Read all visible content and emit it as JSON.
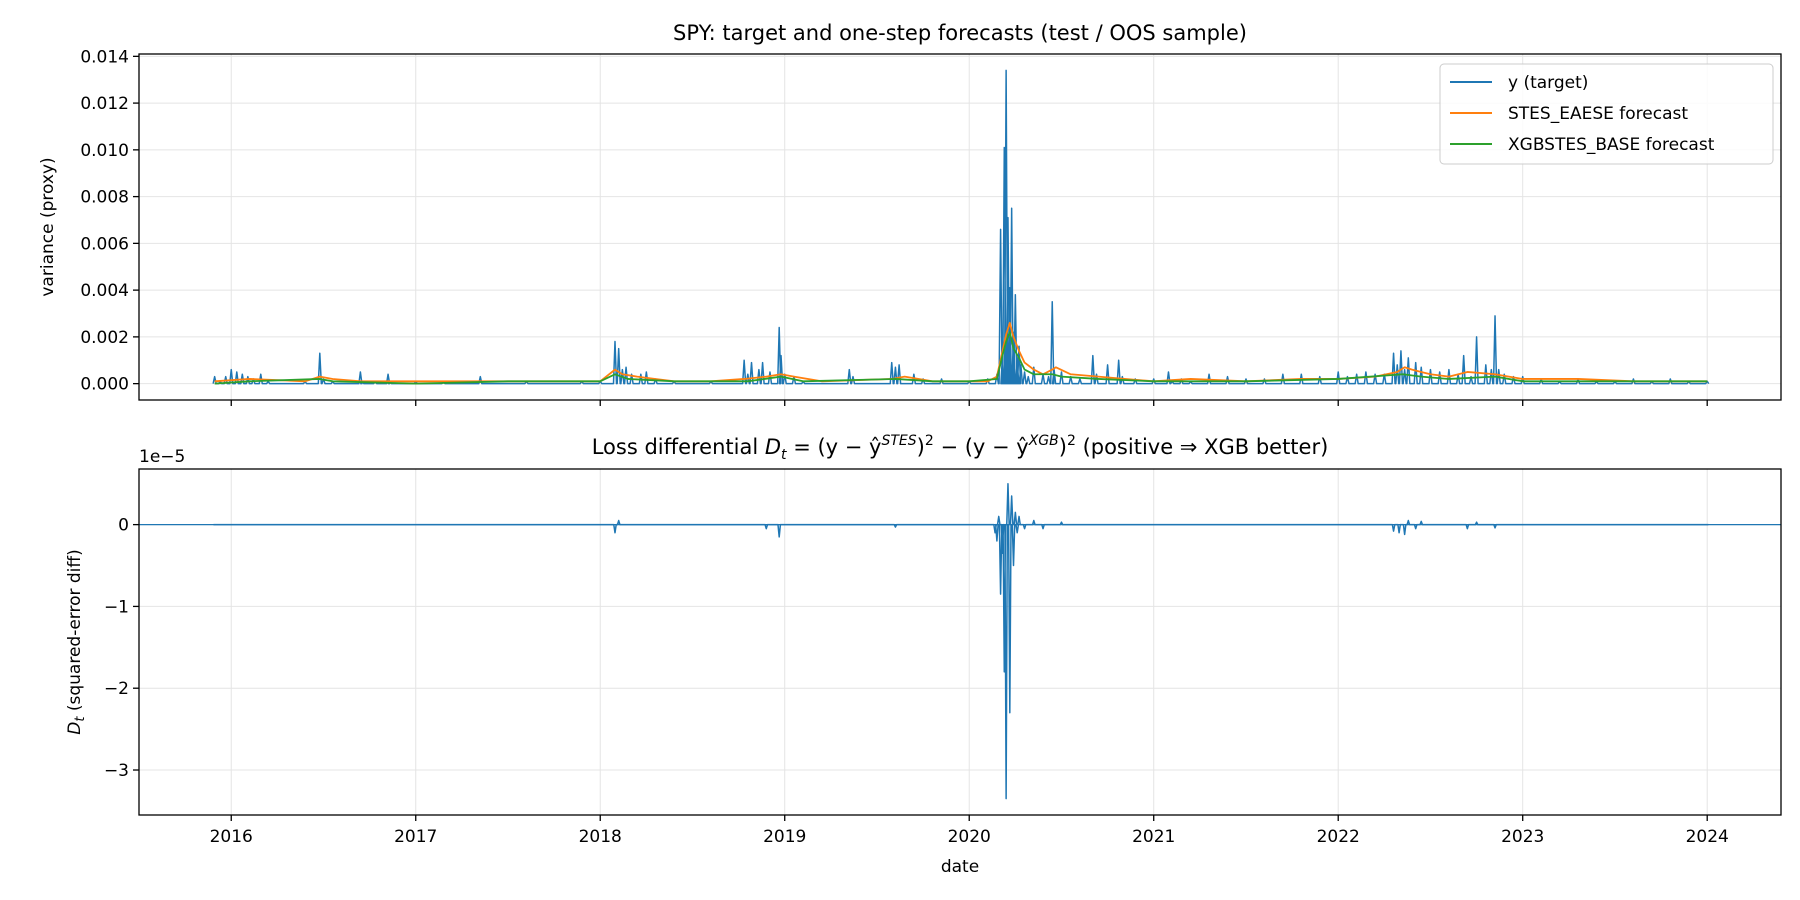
{
  "colors": {
    "target": "#1f77b4",
    "stes": "#ff7f0e",
    "xgb": "#2ca02c",
    "grid": "#e4e4e4",
    "axes": "#000000"
  },
  "chart_data": [
    {
      "type": "line",
      "title": "SPY: target and one-step forecasts (test / OOS sample)",
      "xlabel": "",
      "ylabel": "variance (proxy)",
      "xlim": [
        2015.5,
        2024.4
      ],
      "ylim": [
        -0.0007,
        0.0141
      ],
      "x_ticks": [
        2016,
        2017,
        2018,
        2019,
        2020,
        2021,
        2022,
        2023,
        2024
      ],
      "y_ticks": [
        0.0,
        0.002,
        0.004,
        0.006,
        0.008,
        0.01,
        0.012,
        0.014
      ],
      "y_tick_labels": [
        "0.000",
        "0.002",
        "0.004",
        "0.006",
        "0.008",
        "0.010",
        "0.012",
        "0.014"
      ],
      "grid": true,
      "legend_position": "top-right",
      "series": [
        {
          "name": "y (target)",
          "color": "#1f77b4",
          "x": [
            2015.91,
            2015.94,
            2015.97,
            2016.0,
            2016.03,
            2016.06,
            2016.09,
            2016.12,
            2016.16,
            2016.2,
            2016.3,
            2016.4,
            2016.48,
            2016.5,
            2016.55,
            2016.7,
            2016.71,
            2016.78,
            2016.85,
            2016.86,
            2017.0,
            2017.15,
            2017.35,
            2017.37,
            2017.6,
            2017.75,
            2017.9,
            2018.0,
            2018.08,
            2018.1,
            2018.12,
            2018.14,
            2018.17,
            2018.22,
            2018.25,
            2018.3,
            2018.4,
            2018.6,
            2018.78,
            2018.8,
            2018.82,
            2018.86,
            2018.88,
            2018.92,
            2018.97,
            2018.98,
            2019.0,
            2019.05,
            2019.1,
            2019.35,
            2019.37,
            2019.58,
            2019.6,
            2019.62,
            2019.7,
            2019.75,
            2019.85,
            2020.0,
            2020.1,
            2020.15,
            2020.17,
            2020.18,
            2020.19,
            2020.2,
            2020.21,
            2020.22,
            2020.23,
            2020.24,
            2020.25,
            2020.26,
            2020.27,
            2020.28,
            2020.3,
            2020.32,
            2020.35,
            2020.4,
            2020.43,
            2020.45,
            2020.46,
            2020.5,
            2020.55,
            2020.6,
            2020.67,
            2020.69,
            2020.75,
            2020.81,
            2020.83,
            2020.9,
            2021.0,
            2021.08,
            2021.1,
            2021.15,
            2021.2,
            2021.3,
            2021.4,
            2021.5,
            2021.6,
            2021.7,
            2021.8,
            2021.9,
            2022.0,
            2022.05,
            2022.1,
            2022.15,
            2022.2,
            2022.25,
            2022.3,
            2022.32,
            2022.34,
            2022.36,
            2022.38,
            2022.42,
            2022.45,
            2022.5,
            2022.55,
            2022.6,
            2022.65,
            2022.68,
            2022.72,
            2022.75,
            2022.8,
            2022.83,
            2022.85,
            2022.87,
            2022.9,
            2022.95,
            2023.0,
            2023.1,
            2023.2,
            2023.3,
            2023.4,
            2023.5,
            2023.6,
            2023.7,
            2023.8,
            2023.9,
            2024.0
          ],
          "values": [
            0.0003,
            0.0001,
            0.0003,
            0.0006,
            0.0005,
            0.0004,
            0.0003,
            0.0002,
            0.0004,
            0.0001,
            0.0,
            0.0001,
            0.0013,
            0.0002,
            0.0001,
            0.0005,
            0.0001,
            0.0001,
            0.0004,
            0.0001,
            0.0001,
            0.0001,
            0.0003,
            0.0,
            0.0001,
            0.0,
            0.0001,
            0.0001,
            0.0018,
            0.0015,
            0.0006,
            0.0007,
            0.0004,
            0.0004,
            0.0005,
            0.0002,
            0.0001,
            0.0001,
            0.001,
            0.0004,
            0.0009,
            0.0006,
            0.0009,
            0.0005,
            0.0024,
            0.0012,
            0.0004,
            0.0003,
            0.0001,
            0.0006,
            0.0003,
            0.0009,
            0.0007,
            0.0008,
            0.0004,
            0.0002,
            0.0002,
            0.0001,
            0.0002,
            0.0004,
            0.0066,
            0.0012,
            0.0101,
            0.0134,
            0.0071,
            0.0041,
            0.0075,
            0.0022,
            0.0038,
            0.0011,
            0.0016,
            0.0008,
            0.0005,
            0.0003,
            0.0007,
            0.0004,
            0.0003,
            0.0035,
            0.0006,
            0.0005,
            0.0003,
            0.0002,
            0.0012,
            0.0004,
            0.0008,
            0.001,
            0.0003,
            0.0002,
            0.0002,
            0.0005,
            0.0001,
            0.0002,
            0.0001,
            0.0004,
            0.0003,
            0.0002,
            0.0002,
            0.0004,
            0.0004,
            0.0003,
            0.0005,
            0.0003,
            0.0004,
            0.0005,
            0.0004,
            0.0004,
            0.0013,
            0.0008,
            0.0014,
            0.0006,
            0.0011,
            0.0009,
            0.0007,
            0.0006,
            0.0005,
            0.0006,
            0.0004,
            0.0012,
            0.0003,
            0.002,
            0.0008,
            0.0006,
            0.0029,
            0.0006,
            0.0004,
            0.0003,
            0.0003,
            0.0002,
            0.0001,
            0.0002,
            0.0001,
            0.0001,
            0.0002,
            0.0001,
            0.0002,
            0.0001,
            0.0001
          ]
        },
        {
          "name": "STES_EAESE forecast",
          "color": "#ff7f0e",
          "x": [
            2015.91,
            2016.1,
            2016.4,
            2016.48,
            2016.55,
            2016.7,
            2017.0,
            2017.5,
            2018.0,
            2018.08,
            2018.12,
            2018.2,
            2018.3,
            2018.4,
            2018.6,
            2018.78,
            2018.9,
            2018.98,
            2019.05,
            2019.2,
            2019.58,
            2019.65,
            2019.8,
            2020.0,
            2020.1,
            2020.15,
            2020.2,
            2020.22,
            2020.24,
            2020.27,
            2020.3,
            2020.35,
            2020.4,
            2020.45,
            2020.47,
            2020.55,
            2020.7,
            2020.85,
            2021.0,
            2021.2,
            2021.5,
            2021.8,
            2022.0,
            2022.2,
            2022.32,
            2022.36,
            2022.4,
            2022.45,
            2022.5,
            2022.6,
            2022.7,
            2022.85,
            2023.0,
            2023.3,
            2023.6,
            2024.0
          ],
          "values": [
            0.0001,
            0.0002,
            0.0001,
            0.0003,
            0.0002,
            0.0001,
            0.0001,
            0.0001,
            0.0001,
            0.0006,
            0.0004,
            0.0003,
            0.0002,
            0.0001,
            0.0001,
            0.0002,
            0.0003,
            0.0004,
            0.0003,
            0.0001,
            0.0002,
            0.0003,
            0.0001,
            0.0001,
            0.0001,
            0.0003,
            0.0021,
            0.0026,
            0.002,
            0.0014,
            0.0009,
            0.0006,
            0.0004,
            0.0006,
            0.0007,
            0.0004,
            0.0003,
            0.0002,
            0.0001,
            0.0002,
            0.0001,
            0.0002,
            0.0002,
            0.0003,
            0.0005,
            0.0007,
            0.0006,
            0.0005,
            0.0004,
            0.0003,
            0.0005,
            0.0004,
            0.0002,
            0.0002,
            0.0001,
            0.0001
          ]
        },
        {
          "name": "XGBSTES_BASE forecast",
          "color": "#2ca02c",
          "x": [
            2015.91,
            2016.1,
            2016.48,
            2016.55,
            2017.0,
            2017.5,
            2018.0,
            2018.08,
            2018.15,
            2018.4,
            2018.8,
            2018.98,
            2019.1,
            2019.6,
            2019.8,
            2020.0,
            2020.15,
            2020.18,
            2020.2,
            2020.22,
            2020.24,
            2020.27,
            2020.3,
            2020.35,
            2020.45,
            2020.5,
            2020.7,
            2021.0,
            2021.5,
            2022.0,
            2022.35,
            2022.45,
            2022.6,
            2022.85,
            2023.0,
            2023.5,
            2024.0
          ],
          "values": [
            0.0,
            0.0001,
            0.0002,
            0.0001,
            0.0,
            0.0001,
            0.0001,
            0.0004,
            0.0002,
            0.0001,
            0.0001,
            0.0003,
            0.0001,
            0.0002,
            0.0001,
            0.0001,
            0.0002,
            0.0012,
            0.0018,
            0.0022,
            0.0015,
            0.0011,
            0.0006,
            0.0004,
            0.0004,
            0.0003,
            0.0002,
            0.0001,
            0.0001,
            0.0002,
            0.0004,
            0.0003,
            0.0002,
            0.0003,
            0.0001,
            0.0001,
            0.0001
          ]
        }
      ]
    },
    {
      "type": "line",
      "title_parts": {
        "prefix": "Loss differential ",
        "d": "D",
        "t": "t",
        "eq_a": " = (y − ŷ",
        "sup_stes": "STES",
        "eq_b": ")",
        "sup_2a": "2",
        "eq_c": " − (y − ŷ",
        "sup_xgb": "XGB",
        "eq_d": ")",
        "sup_2b": "2",
        "suffix": "  (positive ⇒ XGB better)"
      },
      "xlabel": "date",
      "ylabel_main": "D",
      "ylabel_sub": "t",
      "ylabel_rest": " (squared-error diff)",
      "offset_label": "1e−5",
      "xlim": [
        2015.5,
        2024.4
      ],
      "ylim": [
        -3.55,
        0.68
      ],
      "y_scale_note": "values in units of 1e-5",
      "x_ticks": [
        2016,
        2017,
        2018,
        2019,
        2020,
        2021,
        2022,
        2023,
        2024
      ],
      "y_ticks": [
        -3,
        -2,
        -1,
        0
      ],
      "y_tick_labels": [
        "−3",
        "−2",
        "−1",
        "0"
      ],
      "grid": true,
      "series": [
        {
          "name": "D_t",
          "color": "#1f77b4",
          "x": [
            2015.91,
            2016.5,
            2017.0,
            2018.0,
            2018.08,
            2018.1,
            2018.15,
            2018.9,
            2018.97,
            2018.99,
            2019.1,
            2019.6,
            2020.0,
            2020.14,
            2020.15,
            2020.16,
            2020.17,
            2020.18,
            2020.19,
            2020.2,
            2020.21,
            2020.22,
            2020.23,
            2020.24,
            2020.25,
            2020.26,
            2020.27,
            2020.3,
            2020.35,
            2020.4,
            2020.5,
            2020.6,
            2021.0,
            2022.0,
            2022.3,
            2022.33,
            2022.36,
            2022.38,
            2022.42,
            2022.45,
            2022.5,
            2022.7,
            2022.75,
            2022.85,
            2023.0,
            2024.0
          ],
          "values": [
            0.0,
            0.0,
            0.0,
            0.0,
            -0.1,
            0.05,
            0.0,
            -0.05,
            -0.15,
            0.0,
            0.0,
            -0.03,
            0.0,
            -0.1,
            -0.2,
            0.1,
            -0.85,
            -0.35,
            -1.8,
            -3.35,
            0.5,
            -2.3,
            0.35,
            -0.5,
            0.15,
            -0.1,
            0.1,
            -0.05,
            0.05,
            -0.05,
            0.03,
            0.0,
            0.0,
            0.0,
            -0.08,
            -0.1,
            -0.12,
            0.05,
            -0.05,
            0.04,
            0.0,
            -0.05,
            0.03,
            -0.04,
            0.0,
            0.0
          ]
        }
      ]
    }
  ]
}
